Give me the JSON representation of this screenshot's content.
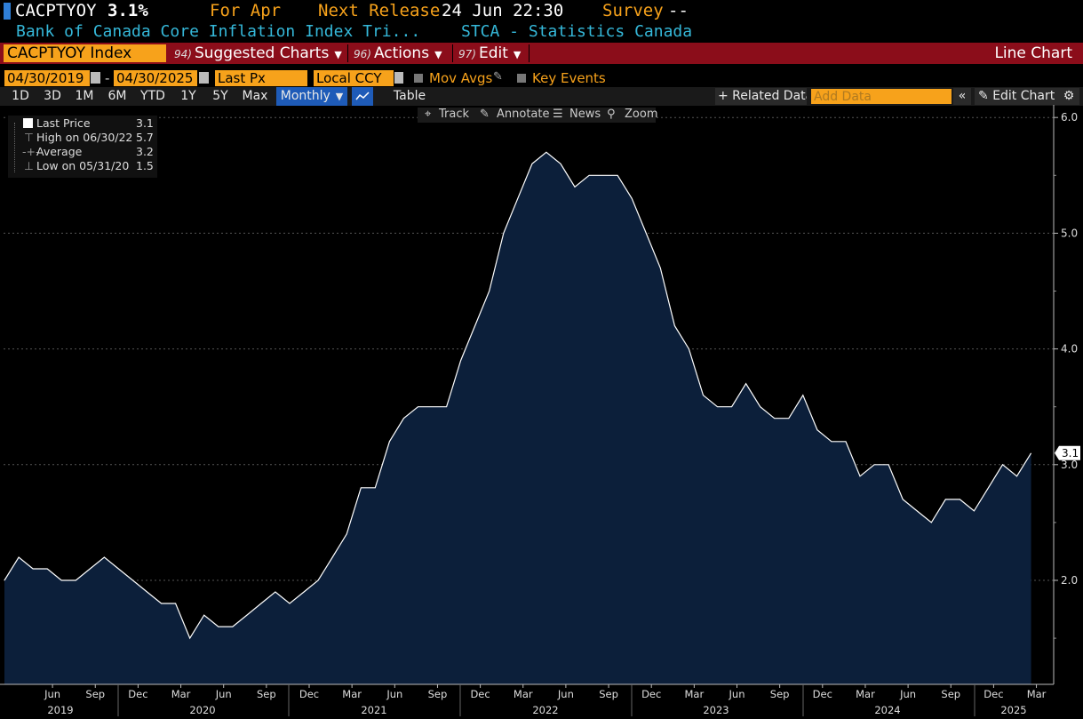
{
  "header": {
    "ticker": "CACPTYOY",
    "last_value": "3.1%",
    "period_label": "For Apr",
    "next_release_label": "Next Release",
    "next_release": "24 Jun 22:30",
    "survey_label": "Survey",
    "survey_value": "--",
    "description": "Bank of Canada Core Inflation Index Tri...",
    "source": "STCA - Statistics Canada"
  },
  "menu_bar": {
    "security": "CACPTYOY Index",
    "suggested_num": "94)",
    "suggested": "Suggested Charts",
    "actions_num": "96)",
    "actions": "Actions",
    "edit_num": "97)",
    "edit": "Edit",
    "chart_type": "Line Chart",
    "colors": {
      "bar": "#8b0d1a",
      "field": "#f7a21b"
    }
  },
  "settings": {
    "start_date": "04/30/2019",
    "dash": "-",
    "end_date": "04/30/2025",
    "field": "Last Px",
    "currency": "Local CCY",
    "mov_avgs": "Mov Avgs",
    "key_events": "Key Events"
  },
  "range_bar": {
    "buttons": [
      "1D",
      "3D",
      "1M",
      "6M",
      "YTD",
      "1Y",
      "5Y",
      "Max"
    ],
    "frequency": "Monthly",
    "table": "Table",
    "related": "+ Related Data",
    "add_data_placeholder": "Add Data",
    "edit_chart": "Edit Chart"
  },
  "tools": {
    "track": "Track",
    "annotate": "Annotate",
    "news": "News",
    "zoom": "Zoom"
  },
  "legend": {
    "rows": [
      {
        "label": "Last Price",
        "value": "3.1"
      },
      {
        "label": "High on 06/30/22",
        "value": "5.7"
      },
      {
        "label": "Average",
        "value": "3.2"
      },
      {
        "label": "Low on 05/31/20",
        "value": "1.5"
      }
    ]
  },
  "chart_data": {
    "type": "area",
    "y_ticks": [
      "6.0",
      "5.0",
      "4.0",
      "3.0",
      "2.0"
    ],
    "ylim": [
      1.0,
      6.05
    ],
    "last_label": "3.1",
    "x_month_ticks": [
      "Jun",
      "Sep",
      "Dec",
      "Mar",
      "Jun",
      "Sep",
      "Dec",
      "Mar",
      "Jun",
      "Sep",
      "Dec",
      "Mar",
      "Jun",
      "Sep",
      "Dec",
      "Mar",
      "Jun",
      "Sep",
      "Dec",
      "Mar",
      "Jun",
      "Sep",
      "Dec",
      "Mar"
    ],
    "x_years": [
      "2019",
      "2020",
      "2021",
      "2022",
      "2023",
      "2024",
      "2025"
    ],
    "x": [
      "2019-04",
      "2019-05",
      "2019-06",
      "2019-07",
      "2019-08",
      "2019-09",
      "2019-10",
      "2019-11",
      "2019-12",
      "2020-01",
      "2020-02",
      "2020-03",
      "2020-04",
      "2020-05",
      "2020-06",
      "2020-07",
      "2020-08",
      "2020-09",
      "2020-10",
      "2020-11",
      "2020-12",
      "2021-01",
      "2021-02",
      "2021-03",
      "2021-04",
      "2021-05",
      "2021-06",
      "2021-07",
      "2021-08",
      "2021-09",
      "2021-10",
      "2021-11",
      "2021-12",
      "2022-01",
      "2022-02",
      "2022-03",
      "2022-04",
      "2022-05",
      "2022-06",
      "2022-07",
      "2022-08",
      "2022-09",
      "2022-10",
      "2022-11",
      "2022-12",
      "2023-01",
      "2023-02",
      "2023-03",
      "2023-04",
      "2023-05",
      "2023-06",
      "2023-07",
      "2023-08",
      "2023-09",
      "2023-10",
      "2023-11",
      "2023-12",
      "2024-01",
      "2024-02",
      "2024-03",
      "2024-04",
      "2024-05",
      "2024-06",
      "2024-07",
      "2024-08",
      "2024-09",
      "2024-10",
      "2024-11",
      "2024-12",
      "2025-01",
      "2025-02",
      "2025-03",
      "2025-04"
    ],
    "values": [
      2.0,
      2.2,
      2.1,
      2.1,
      2.0,
      2.0,
      2.1,
      2.2,
      2.1,
      2.0,
      1.9,
      1.8,
      1.8,
      1.5,
      1.7,
      1.6,
      1.6,
      1.7,
      1.8,
      1.9,
      1.8,
      1.9,
      2.0,
      2.2,
      2.4,
      2.8,
      2.8,
      3.2,
      3.4,
      3.5,
      3.5,
      3.5,
      3.9,
      4.2,
      4.5,
      5.0,
      5.3,
      5.6,
      5.7,
      5.6,
      5.4,
      5.5,
      5.5,
      5.5,
      5.3,
      5.0,
      4.7,
      4.2,
      4.0,
      3.6,
      3.5,
      3.5,
      3.7,
      3.5,
      3.4,
      3.4,
      3.6,
      3.3,
      3.2,
      3.2,
      2.9,
      3.0,
      3.0,
      2.7,
      2.6,
      2.5,
      2.7,
      2.7,
      2.6,
      2.8,
      3.0,
      2.9,
      3.1
    ],
    "colors": {
      "line": "#ffffff",
      "fill": "#0c1f3a",
      "grid": "#555555"
    }
  }
}
